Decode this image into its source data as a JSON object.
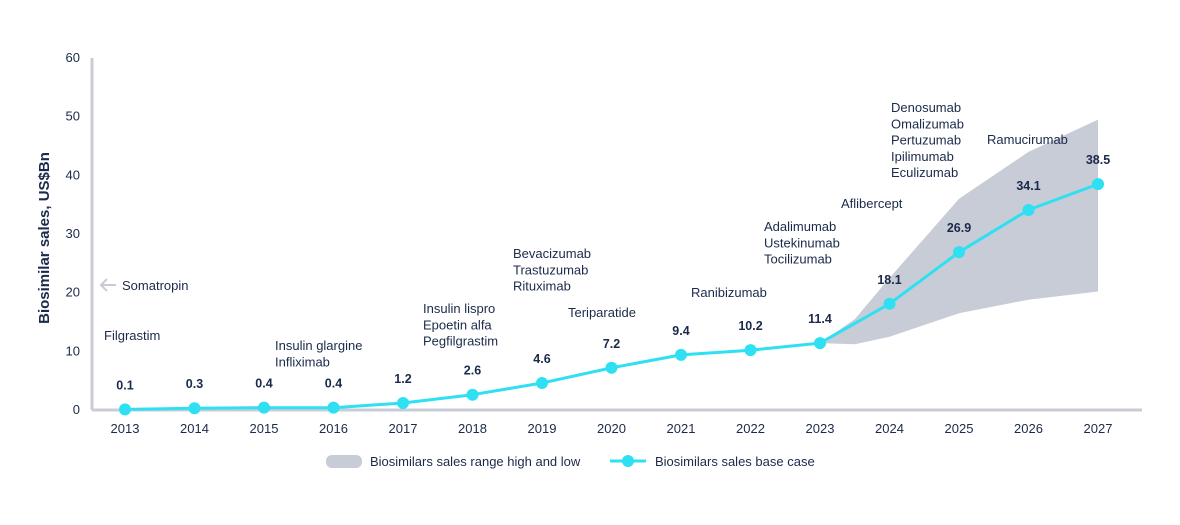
{
  "chart_data": {
    "type": "line",
    "title": "",
    "xlabel": "",
    "ylabel": "Biosimilar sales, US$Bn",
    "ylim": [
      0,
      60
    ],
    "yticks": [
      0,
      10,
      20,
      30,
      40,
      50,
      60
    ],
    "grid": false,
    "legend_position": "bottom",
    "categories": [
      "2013",
      "2014",
      "2015",
      "2016",
      "2017",
      "2018",
      "2019",
      "2020",
      "2021",
      "2022",
      "2023",
      "2024",
      "2025",
      "2026",
      "2027"
    ],
    "series": [
      {
        "name": "Biosimilars sales base case",
        "type": "line",
        "color": "#2ee0f2",
        "values": [
          0.1,
          0.3,
          0.4,
          0.4,
          1.2,
          2.6,
          4.6,
          7.2,
          9.4,
          10.2,
          11.4,
          18.1,
          26.9,
          34.1,
          38.5
        ],
        "labels": [
          "0.1",
          "0.3",
          "0.4",
          "0.4",
          "1.2",
          "2.6",
          "4.6",
          "7.2",
          "9.4",
          "10.2",
          "11.4",
          "18.1",
          "26.9",
          "34.1",
          "38.5"
        ]
      },
      {
        "name": "Biosimilars sales range high and low",
        "type": "area-range",
        "color": "#c8ccd6",
        "x": [
          "2023",
          "2023.5",
          "2024",
          "2025",
          "2026",
          "2027"
        ],
        "high": [
          11.4,
          15.5,
          22.5,
          36,
          44,
          49.5
        ],
        "low": [
          11.4,
          11.2,
          12.5,
          16.5,
          18.8,
          20.2
        ]
      }
    ],
    "annotations": [
      {
        "year": "2013",
        "lines": [
          "Somatropin"
        ],
        "arrow": true
      },
      {
        "year": "2013",
        "lines": [
          "Filgrastim"
        ]
      },
      {
        "year": "2016",
        "lines": [
          "Insulin glargine",
          "Infliximab"
        ]
      },
      {
        "year": "2018",
        "lines": [
          "Insulin lispro",
          "Epoetin alfa",
          "Pegfilgrastim"
        ]
      },
      {
        "year": "2019",
        "lines": [
          "Bevacizumab",
          "Trastuzumab",
          "Rituximab"
        ]
      },
      {
        "year": "2020",
        "lines": [
          "Teriparatide"
        ]
      },
      {
        "year": "2022",
        "lines": [
          "Ranibizumab"
        ]
      },
      {
        "year": "2023",
        "lines": [
          "Adalimumab",
          "Ustekinumab",
          "Tocilizumab"
        ]
      },
      {
        "year": "2024",
        "lines": [
          "Aflibercept"
        ]
      },
      {
        "year": "2025",
        "lines": [
          "Denosumab",
          "Omalizumab",
          "Pertuzumab",
          "Ipilimumab",
          "Eculizumab"
        ]
      },
      {
        "year": "2026",
        "lines": [
          "Ramucirumab"
        ]
      }
    ],
    "colors": {
      "axis": "#c8ccd6",
      "text": "#1b2a4a",
      "line": "#2ee0f2",
      "range": "#c8ccd6"
    }
  }
}
